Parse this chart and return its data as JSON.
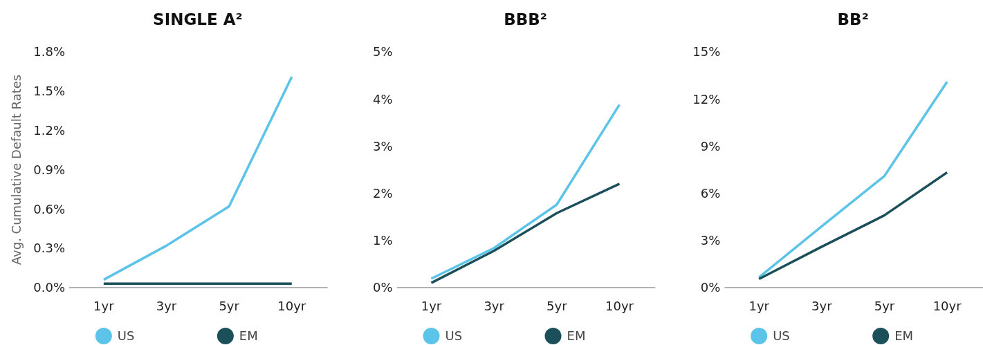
{
  "chart_data": [
    {
      "type": "line",
      "title": "SINGLE A²",
      "ylabel": "Avg. Cumulative Default Rates",
      "categories": [
        "1yr",
        "3yr",
        "5yr",
        "10yr"
      ],
      "series": [
        {
          "name": "US",
          "color": "#5bc4e8",
          "values": [
            0.06,
            0.32,
            0.62,
            1.61
          ]
        },
        {
          "name": "EM",
          "color": "#1b4f5a",
          "values": [
            0.03,
            0.03,
            0.03,
            0.03
          ]
        }
      ],
      "ylim": [
        0,
        1.8
      ],
      "yticks": [
        {
          "value": 0,
          "label": "0.0%"
        },
        {
          "value": 0.3,
          "label": "0.3%"
        },
        {
          "value": 0.6,
          "label": "0.6%"
        },
        {
          "value": 0.9,
          "label": "0.9%"
        },
        {
          "value": 1.2,
          "label": "1.2%"
        },
        {
          "value": 1.5,
          "label": "1.5%"
        },
        {
          "value": 1.8,
          "label": "1.8%"
        }
      ],
      "legend": "bottom",
      "grid": false,
      "marker": "none"
    },
    {
      "type": "line",
      "title": "BBB²",
      "categories": [
        "1yr",
        "3yr",
        "5yr",
        "10yr"
      ],
      "series": [
        {
          "name": "US",
          "color": "#5bc4e8",
          "values": [
            0.19,
            0.84,
            1.76,
            3.88
          ]
        },
        {
          "name": "EM",
          "color": "#1b4f5a",
          "values": [
            0.1,
            0.78,
            1.58,
            2.2
          ]
        }
      ],
      "ylim": [
        0,
        5
      ],
      "yticks": [
        {
          "value": 0,
          "label": "0%"
        },
        {
          "value": 1,
          "label": "1%"
        },
        {
          "value": 2,
          "label": "2%"
        },
        {
          "value": 3,
          "label": "3%"
        },
        {
          "value": 4,
          "label": "4%"
        },
        {
          "value": 5,
          "label": "5%"
        }
      ],
      "legend": "bottom",
      "grid": false,
      "marker": "none"
    },
    {
      "type": "line",
      "title": "BB²",
      "categories": [
        "1yr",
        "3yr",
        "5yr",
        "10yr"
      ],
      "series": [
        {
          "name": "US",
          "color": "#5bc4e8",
          "values": [
            0.65,
            3.9,
            7.1,
            13.1
          ]
        },
        {
          "name": "EM",
          "color": "#1b4f5a",
          "values": [
            0.55,
            2.6,
            4.6,
            7.33
          ]
        }
      ],
      "ylim": [
        0,
        15
      ],
      "yticks": [
        {
          "value": 0,
          "label": "0%"
        },
        {
          "value": 3,
          "label": "3%"
        },
        {
          "value": 6,
          "label": "6%"
        },
        {
          "value": 9,
          "label": "9%"
        },
        {
          "value": 12,
          "label": "12%"
        },
        {
          "value": 15,
          "label": "15%"
        }
      ],
      "legend": "bottom",
      "grid": false,
      "marker": "none"
    }
  ]
}
